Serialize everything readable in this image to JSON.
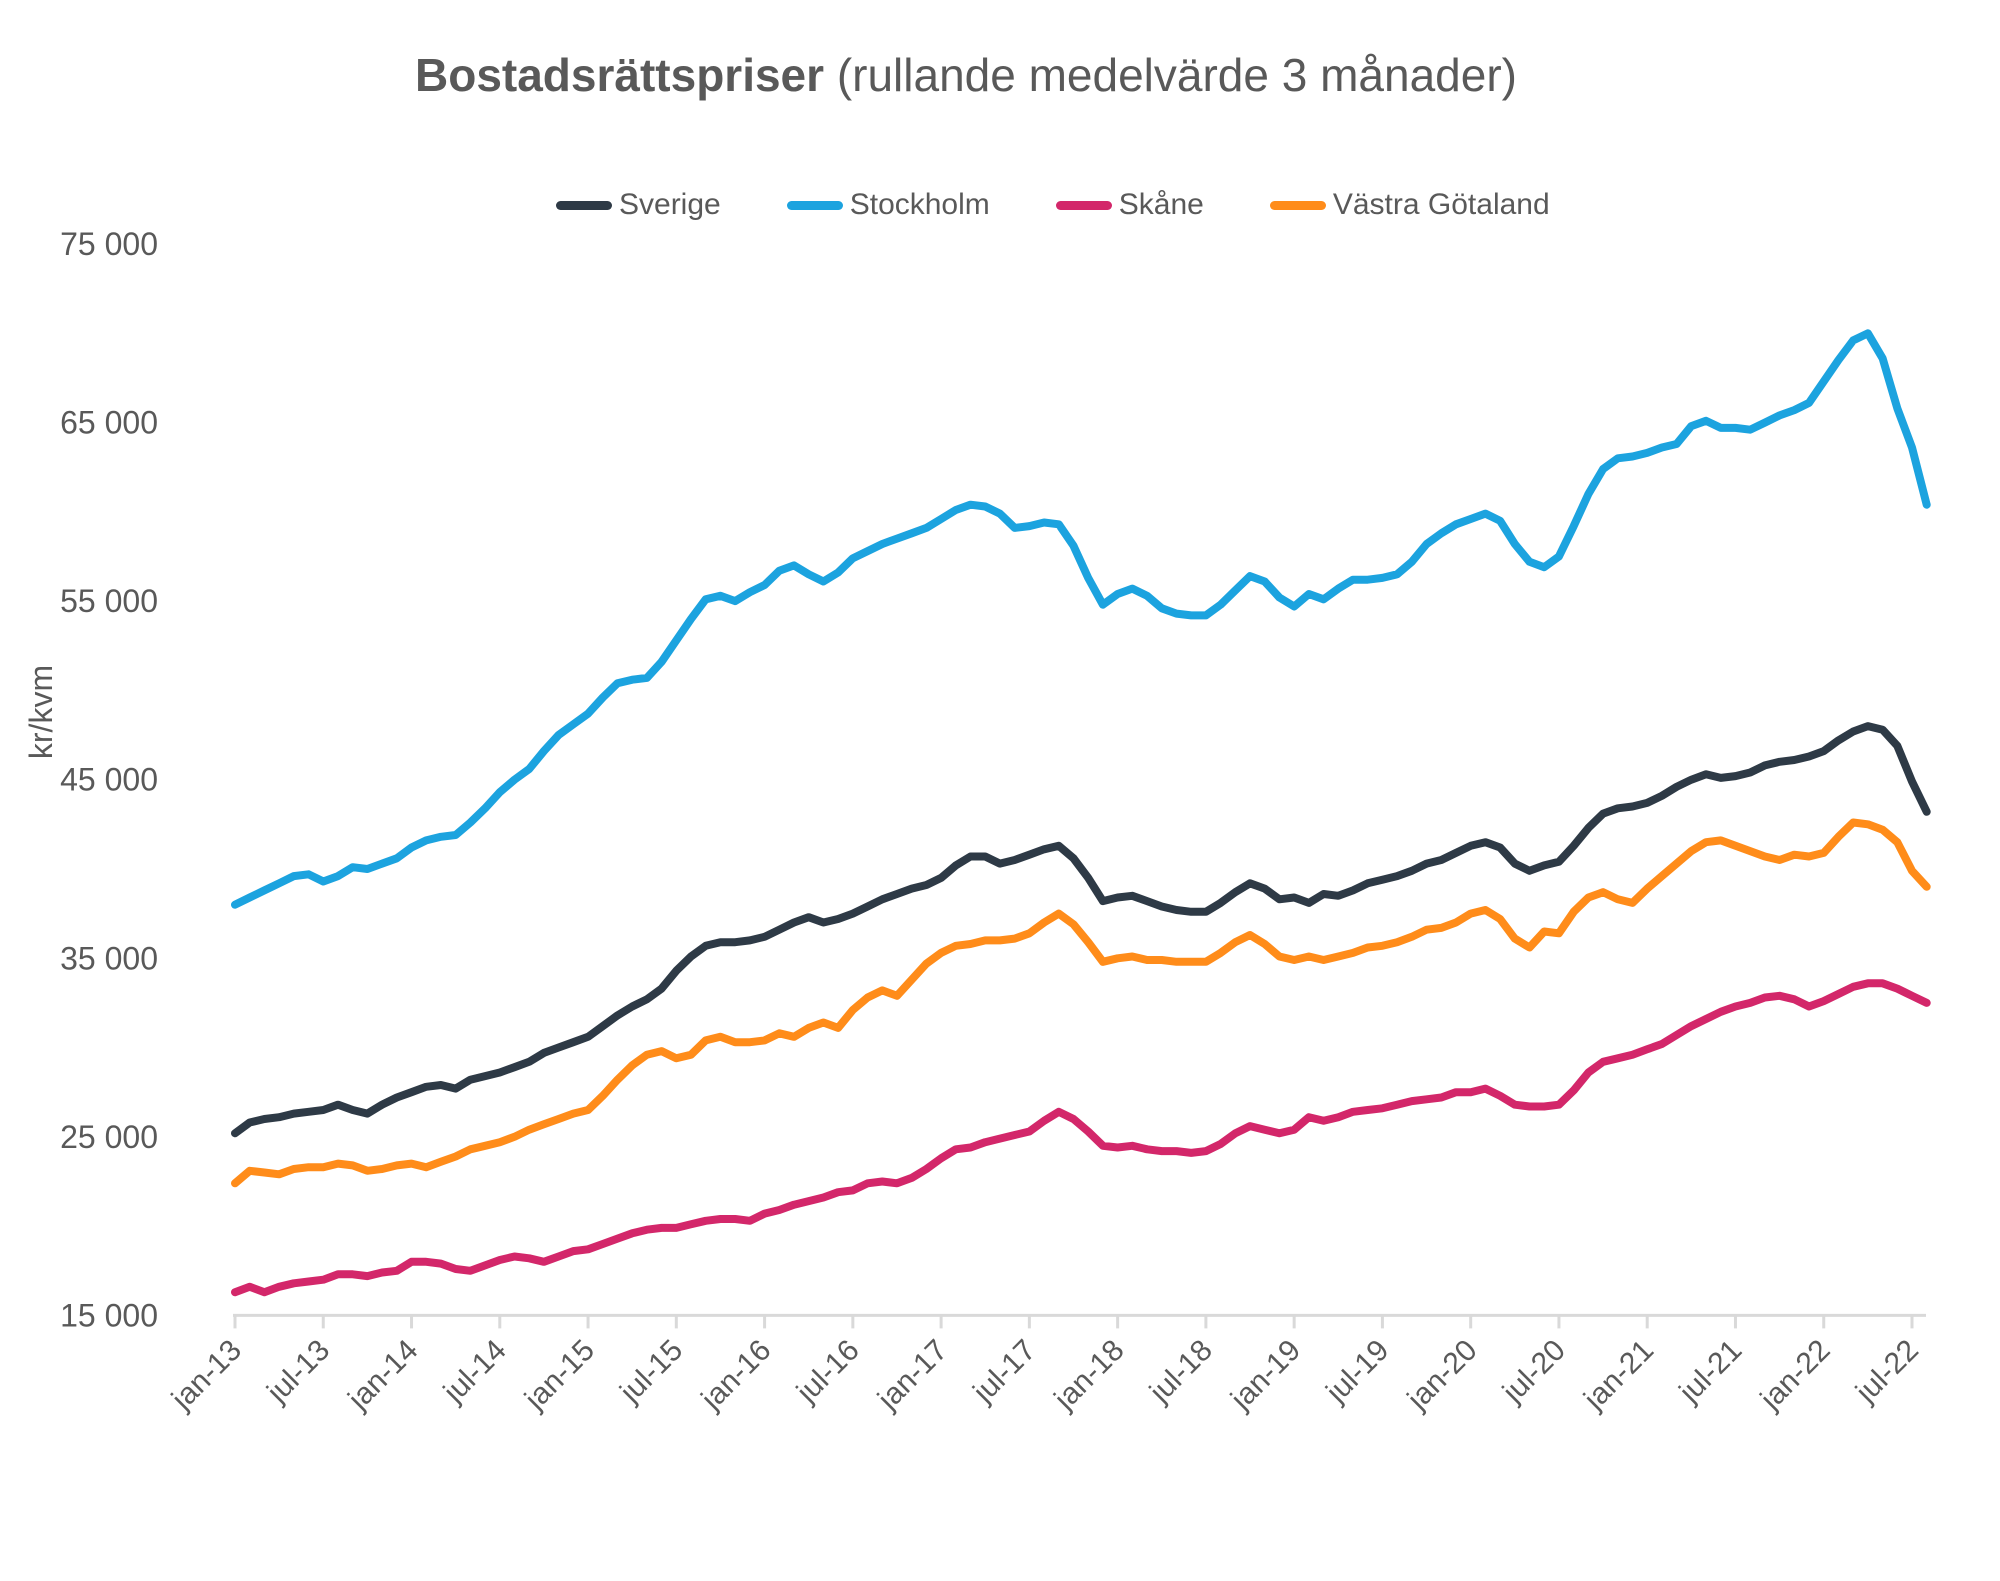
{
  "title": {
    "bold": "Bostadsrättspriser",
    "regular": " (rullande medelvärde 3 månader)"
  },
  "colors": {
    "axis": "#D9D9D9",
    "text": "#595959"
  },
  "y_axis": {
    "unit_label": "kr/kvm",
    "ticks": [
      {
        "label": "75 000",
        "value": 75000
      },
      {
        "label": "65 000",
        "value": 65000
      },
      {
        "label": "55 000",
        "value": 55000
      },
      {
        "label": "45 000",
        "value": 45000
      },
      {
        "label": "35 000",
        "value": 35000
      },
      {
        "label": "25 000",
        "value": 25000
      },
      {
        "label": "15 000",
        "value": 15000
      }
    ]
  },
  "x_axis": {
    "ticks": [
      {
        "label": "jan-13",
        "month_index": 0
      },
      {
        "label": "jul-13",
        "month_index": 6
      },
      {
        "label": "jan-14",
        "month_index": 12
      },
      {
        "label": "jul-14",
        "month_index": 18
      },
      {
        "label": "jan-15",
        "month_index": 24
      },
      {
        "label": "jul-15",
        "month_index": 30
      },
      {
        "label": "jan-16",
        "month_index": 36
      },
      {
        "label": "jul-16",
        "month_index": 42
      },
      {
        "label": "jan-17",
        "month_index": 48
      },
      {
        "label": "jul-17",
        "month_index": 54
      },
      {
        "label": "jan-18",
        "month_index": 60
      },
      {
        "label": "jul-18",
        "month_index": 66
      },
      {
        "label": "jan-19",
        "month_index": 72
      },
      {
        "label": "jul-19",
        "month_index": 78
      },
      {
        "label": "jan-20",
        "month_index": 84
      },
      {
        "label": "jul-20",
        "month_index": 90
      },
      {
        "label": "jan-21",
        "month_index": 96
      },
      {
        "label": "jul-21",
        "month_index": 102
      },
      {
        "label": "jan-22",
        "month_index": 108
      },
      {
        "label": "jul-22",
        "month_index": 114
      }
    ]
  },
  "chart_data": {
    "type": "line",
    "x_frequency": "monthly",
    "x_start": "jan-13",
    "x_end": "aug-22",
    "ylim": [
      15000,
      75000
    ],
    "grid": false,
    "legend_position": "top",
    "series": [
      {
        "name": "Sverige",
        "color": "#2E3A46",
        "values": [
          25200,
          25800,
          26000,
          26100,
          26300,
          26400,
          26500,
          26800,
          26500,
          26300,
          26800,
          27200,
          27500,
          27800,
          27900,
          27700,
          28200,
          28400,
          28600,
          28900,
          29200,
          29700,
          30000,
          30300,
          30600,
          31200,
          31800,
          32300,
          32700,
          33300,
          34300,
          35100,
          35700,
          35900,
          35900,
          36000,
          36200,
          36600,
          37000,
          37300,
          37000,
          37200,
          37500,
          37900,
          38300,
          38600,
          38900,
          39100,
          39500,
          40200,
          40700,
          40700,
          40300,
          40500,
          40800,
          41100,
          41300,
          40600,
          39500,
          38200,
          38400,
          38500,
          38200,
          37900,
          37700,
          37600,
          37600,
          38100,
          38700,
          39200,
          38900,
          38300,
          38400,
          38100,
          38600,
          38500,
          38800,
          39200,
          39400,
          39600,
          39900,
          40300,
          40500,
          40900,
          41300,
          41500,
          41200,
          40300,
          39900,
          40200,
          40400,
          41300,
          42300,
          43100,
          43400,
          43500,
          43700,
          44100,
          44600,
          45000,
          45300,
          45100,
          45200,
          45400,
          45800,
          46000,
          46100,
          46300,
          46600,
          47200,
          47700,
          48000,
          47800,
          46900,
          44900,
          43200
        ]
      },
      {
        "name": "Stockholm",
        "color": "#1CA3DF",
        "values": [
          38000,
          38400,
          38800,
          39200,
          39600,
          39700,
          39300,
          39600,
          40100,
          40000,
          40300,
          40600,
          41200,
          41600,
          41800,
          41900,
          42600,
          43400,
          44300,
          45000,
          45600,
          46600,
          47500,
          48100,
          48700,
          49600,
          50400,
          50600,
          50700,
          51600,
          52800,
          54000,
          55100,
          55300,
          55000,
          55500,
          55900,
          56700,
          57000,
          56500,
          56100,
          56600,
          57400,
          57800,
          58200,
          58500,
          58800,
          59100,
          59600,
          60100,
          60400,
          60300,
          59900,
          59100,
          59200,
          59400,
          59300,
          58100,
          56300,
          54800,
          55400,
          55700,
          55300,
          54600,
          54300,
          54200,
          54200,
          54800,
          55600,
          56400,
          56100,
          55200,
          54700,
          55400,
          55100,
          55700,
          56200,
          56200,
          56300,
          56500,
          57200,
          58200,
          58800,
          59300,
          59600,
          59900,
          59500,
          58200,
          57200,
          56900,
          57500,
          59200,
          61000,
          62400,
          63000,
          63100,
          63300,
          63600,
          63800,
          64800,
          65100,
          64700,
          64700,
          64600,
          65000,
          65400,
          65700,
          66100,
          67300,
          68500,
          69600,
          70000,
          68600,
          65800,
          63600,
          60400
        ]
      },
      {
        "name": "Skåne",
        "color": "#D3276A",
        "values": [
          16300,
          16600,
          16300,
          16600,
          16800,
          16900,
          17000,
          17300,
          17300,
          17200,
          17400,
          17500,
          18000,
          18000,
          17900,
          17600,
          17500,
          17800,
          18100,
          18300,
          18200,
          18000,
          18300,
          18600,
          18700,
          19000,
          19300,
          19600,
          19800,
          19900,
          19900,
          20100,
          20300,
          20400,
          20400,
          20300,
          20700,
          20900,
          21200,
          21400,
          21600,
          21900,
          22000,
          22400,
          22500,
          22400,
          22700,
          23200,
          23800,
          24300,
          24400,
          24700,
          24900,
          25100,
          25300,
          25900,
          26400,
          26000,
          25300,
          24500,
          24400,
          24500,
          24300,
          24200,
          24200,
          24100,
          24200,
          24600,
          25200,
          25600,
          25400,
          25200,
          25400,
          26100,
          25900,
          26100,
          26400,
          26500,
          26600,
          26800,
          27000,
          27100,
          27200,
          27500,
          27500,
          27700,
          27300,
          26800,
          26700,
          26700,
          26800,
          27600,
          28600,
          29200,
          29400,
          29600,
          29900,
          30200,
          30700,
          31200,
          31600,
          32000,
          32300,
          32500,
          32800,
          32900,
          32700,
          32300,
          32600,
          33000,
          33400,
          33600,
          33600,
          33300,
          32900,
          32500
        ]
      },
      {
        "name": "Västra Götaland",
        "color": "#FF8C1A",
        "values": [
          22400,
          23100,
          23000,
          22900,
          23200,
          23300,
          23300,
          23500,
          23400,
          23100,
          23200,
          23400,
          23500,
          23300,
          23600,
          23900,
          24300,
          24500,
          24700,
          25000,
          25400,
          25700,
          26000,
          26300,
          26500,
          27300,
          28200,
          29000,
          29600,
          29800,
          29400,
          29600,
          30400,
          30600,
          30300,
          30300,
          30400,
          30800,
          30600,
          31100,
          31400,
          31100,
          32100,
          32800,
          33200,
          32900,
          33800,
          34700,
          35300,
          35700,
          35800,
          36000,
          36000,
          36100,
          36400,
          37000,
          37500,
          36900,
          35900,
          34800,
          35000,
          35100,
          34900,
          34900,
          34800,
          34800,
          34800,
          35300,
          35900,
          36300,
          35800,
          35100,
          34900,
          35100,
          34900,
          35100,
          35300,
          35600,
          35700,
          35900,
          36200,
          36600,
          36700,
          37000,
          37500,
          37700,
          37200,
          36100,
          35600,
          36500,
          36400,
          37600,
          38400,
          38700,
          38300,
          38100,
          38900,
          39600,
          40300,
          41000,
          41500,
          41600,
          41300,
          41000,
          40700,
          40500,
          40800,
          40700,
          40900,
          41800,
          42600,
          42500,
          42200,
          41500,
          39900,
          39000
        ]
      }
    ]
  }
}
